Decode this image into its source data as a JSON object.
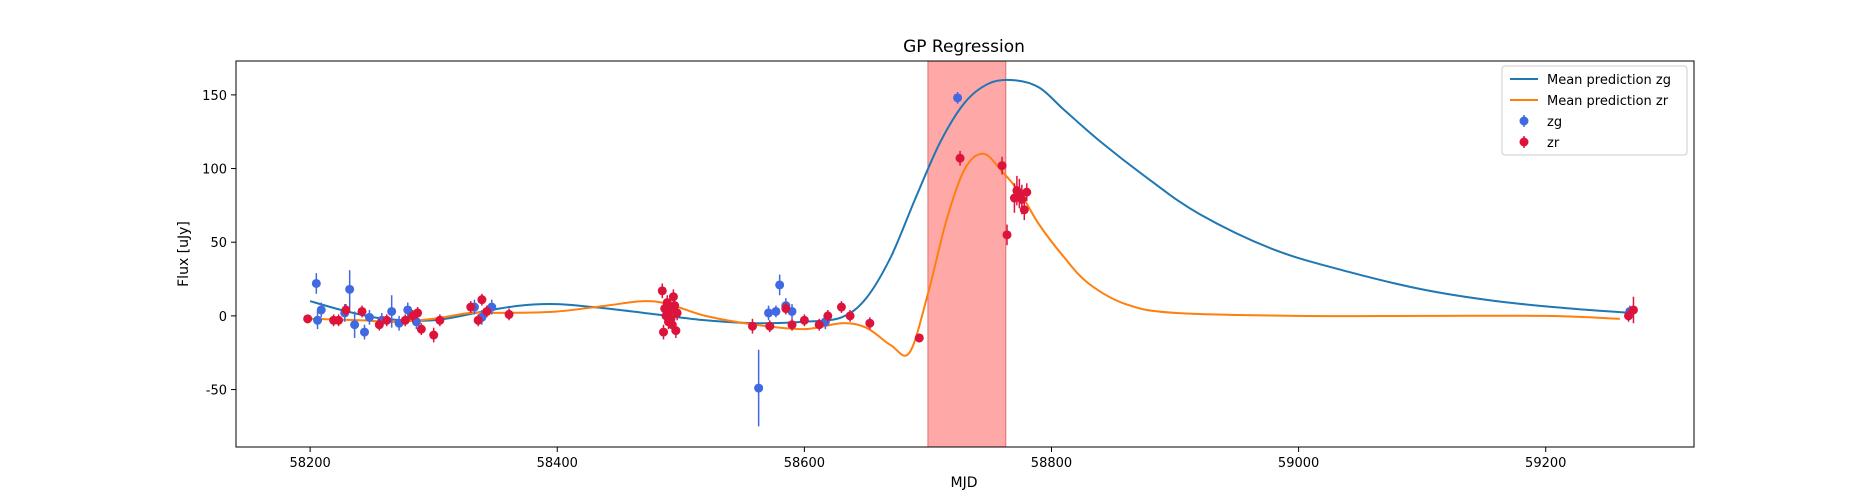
{
  "chart_data": {
    "type": "scatter",
    "title": "GP Regression",
    "xlabel": "MJD",
    "ylabel": "Flux [uJy]",
    "xlim": [
      58140,
      59320
    ],
    "ylim": [
      -89,
      173
    ],
    "xticks": [
      58200,
      58400,
      58600,
      58800,
      59000,
      59200
    ],
    "yticks": [
      -50,
      0,
      50,
      100,
      150
    ],
    "grid": false,
    "legend_position": "top-right",
    "shaded_region": {
      "x_start": 58700,
      "x_end": 58763,
      "color": "#ff9999"
    },
    "colors": {
      "zg_line": "#1f77b4",
      "zr_line": "#ff7f0e",
      "zg_points": "#4169e1",
      "zr_points": "#dc143c",
      "shade": "#ff9999"
    },
    "lines": [
      {
        "name": "Mean prediction zg",
        "x": [
          58200,
          58230,
          58260,
          58300,
          58340,
          58370,
          58400,
          58440,
          58480,
          58520,
          58560,
          58600,
          58630,
          58650,
          58670,
          58690,
          58710,
          58730,
          58750,
          58770,
          58790,
          58810,
          58840,
          58880,
          58920,
          58980,
          59040,
          59100,
          59160,
          59220,
          59270
        ],
        "y": [
          10,
          3,
          -2,
          -3,
          3,
          7,
          8,
          5,
          1,
          -3,
          -5,
          -4,
          -1,
          12,
          40,
          80,
          118,
          145,
          158,
          160,
          155,
          140,
          118,
          92,
          69,
          45,
          30,
          18,
          10,
          5,
          2
        ]
      },
      {
        "name": "Mean prediction zr",
        "x": [
          58200,
          58240,
          58270,
          58300,
          58330,
          58360,
          58400,
          58440,
          58470,
          58490,
          58520,
          58560,
          58600,
          58630,
          58650,
          58670,
          58685,
          58700,
          58715,
          58730,
          58745,
          58760,
          58775,
          58790,
          58810,
          58830,
          58860,
          58900,
          59000,
          59100,
          59200,
          59260
        ],
        "y": [
          -2,
          -3,
          -4,
          -2,
          2,
          2,
          3,
          7,
          10,
          8,
          0,
          -6,
          -9,
          -5,
          -8,
          -20,
          -25,
          15,
          65,
          100,
          110,
          98,
          83,
          62,
          40,
          22,
          8,
          2,
          0,
          0,
          0,
          -2
        ]
      }
    ],
    "series": [
      {
        "name": "zg",
        "points": [
          {
            "x": 58205,
            "y": 22,
            "err": 7
          },
          {
            "x": 58206,
            "y": -3,
            "err": 6
          },
          {
            "x": 58209,
            "y": 4,
            "err": 5
          },
          {
            "x": 58228,
            "y": 2,
            "err": 6
          },
          {
            "x": 58232,
            "y": 18,
            "err": 13
          },
          {
            "x": 58236,
            "y": -6,
            "err": 9
          },
          {
            "x": 58244,
            "y": -11,
            "err": 5
          },
          {
            "x": 58248,
            "y": -1,
            "err": 5
          },
          {
            "x": 58258,
            "y": -3,
            "err": 5
          },
          {
            "x": 58266,
            "y": 3,
            "err": 11
          },
          {
            "x": 58272,
            "y": -5,
            "err": 5
          },
          {
            "x": 58279,
            "y": 4,
            "err": 5
          },
          {
            "x": 58286,
            "y": -4,
            "err": 5
          },
          {
            "x": 58333,
            "y": 6,
            "err": 5
          },
          {
            "x": 58339,
            "y": -1,
            "err": 5
          },
          {
            "x": 58347,
            "y": 6,
            "err": 5
          },
          {
            "x": 58563,
            "y": -49,
            "err": 26
          },
          {
            "x": 58571,
            "y": 2,
            "err": 5
          },
          {
            "x": 58577,
            "y": 3,
            "err": 4
          },
          {
            "x": 58580,
            "y": 21,
            "err": 7
          },
          {
            "x": 58585,
            "y": 7,
            "err": 5
          },
          {
            "x": 58590,
            "y": 3,
            "err": 5
          },
          {
            "x": 58617,
            "y": -4,
            "err": 5
          },
          {
            "x": 58724,
            "y": 148,
            "err": 4
          },
          {
            "x": 59268,
            "y": 3,
            "err": 4
          }
        ]
      },
      {
        "name": "zr",
        "points": [
          {
            "x": 58198,
            "y": -2,
            "err": 3
          },
          {
            "x": 58219,
            "y": -3,
            "err": 4
          },
          {
            "x": 58223,
            "y": -3,
            "err": 4
          },
          {
            "x": 58229,
            "y": 4,
            "err": 4
          },
          {
            "x": 58242,
            "y": 3,
            "err": 4
          },
          {
            "x": 58256,
            "y": -6,
            "err": 4
          },
          {
            "x": 58262,
            "y": -3,
            "err": 4
          },
          {
            "x": 58277,
            "y": -3,
            "err": 4
          },
          {
            "x": 58283,
            "y": 0,
            "err": 4
          },
          {
            "x": 58287,
            "y": 2,
            "err": 4
          },
          {
            "x": 58290,
            "y": -9,
            "err": 4
          },
          {
            "x": 58300,
            "y": -13,
            "err": 5
          },
          {
            "x": 58305,
            "y": -3,
            "err": 4
          },
          {
            "x": 58330,
            "y": 6,
            "err": 4
          },
          {
            "x": 58336,
            "y": -3,
            "err": 4
          },
          {
            "x": 58339,
            "y": 11,
            "err": 4
          },
          {
            "x": 58343,
            "y": 3,
            "err": 4
          },
          {
            "x": 58361,
            "y": 1,
            "err": 4
          },
          {
            "x": 58485,
            "y": 17,
            "err": 5
          },
          {
            "x": 58486,
            "y": -11,
            "err": 5
          },
          {
            "x": 58487,
            "y": 5,
            "err": 5
          },
          {
            "x": 58488,
            "y": 0,
            "err": 5
          },
          {
            "x": 58489,
            "y": 9,
            "err": 5
          },
          {
            "x": 58490,
            "y": -4,
            "err": 5
          },
          {
            "x": 58491,
            "y": 3,
            "err": 5
          },
          {
            "x": 58492,
            "y": -2,
            "err": 5
          },
          {
            "x": 58493,
            "y": -6,
            "err": 5
          },
          {
            "x": 58494,
            "y": 13,
            "err": 5
          },
          {
            "x": 58495,
            "y": 7,
            "err": 5
          },
          {
            "x": 58496,
            "y": -10,
            "err": 5
          },
          {
            "x": 58497,
            "y": 2,
            "err": 5
          },
          {
            "x": 58558,
            "y": -7,
            "err": 5
          },
          {
            "x": 58572,
            "y": -7,
            "err": 4
          },
          {
            "x": 58585,
            "y": 5,
            "err": 4
          },
          {
            "x": 58590,
            "y": -6,
            "err": 4
          },
          {
            "x": 58600,
            "y": -3,
            "err": 4
          },
          {
            "x": 58612,
            "y": -6,
            "err": 4
          },
          {
            "x": 58619,
            "y": 0,
            "err": 4
          },
          {
            "x": 58630,
            "y": 6,
            "err": 4
          },
          {
            "x": 58637,
            "y": 0,
            "err": 4
          },
          {
            "x": 58653,
            "y": -5,
            "err": 4
          },
          {
            "x": 58693,
            "y": -15,
            "err": 3
          },
          {
            "x": 58726,
            "y": 107,
            "err": 5
          },
          {
            "x": 58760,
            "y": 102,
            "err": 6
          },
          {
            "x": 58764,
            "y": 55,
            "err": 7
          },
          {
            "x": 58770,
            "y": 80,
            "err": 10
          },
          {
            "x": 58772,
            "y": 85,
            "err": 10
          },
          {
            "x": 58774,
            "y": 83,
            "err": 10
          },
          {
            "x": 58776,
            "y": 79,
            "err": 10
          },
          {
            "x": 58778,
            "y": 72,
            "err": 7
          },
          {
            "x": 58780,
            "y": 84,
            "err": 6
          },
          {
            "x": 59267,
            "y": 0,
            "err": 4
          },
          {
            "x": 59271,
            "y": 4,
            "err": 9
          }
        ]
      }
    ],
    "legend": [
      "Mean prediction zg",
      "Mean prediction zr",
      "zg",
      "zr"
    ]
  }
}
